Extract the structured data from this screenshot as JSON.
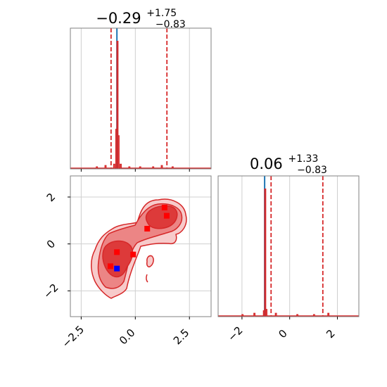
{
  "chart_data": [
    {
      "type": "histogram",
      "panel": "top-left",
      "title": {
        "main": "−0.29",
        "sup": "+1.75",
        "sub": "−0.83"
      },
      "xlim": [
        -3.0,
        3.5
      ],
      "quantile_lines": [
        -1.12,
        1.46
      ],
      "truth_line": -0.85,
      "x_ticks": [
        -2.5,
        0.0,
        2.5
      ],
      "histogram": {
        "x": [
          -1.8,
          -1.4,
          -1.0,
          -0.9,
          -0.85,
          -0.8,
          -0.7,
          -0.3,
          0.2,
          0.8,
          1.2,
          1.7
        ],
        "y": [
          0.01,
          0.02,
          0.03,
          0.3,
          0.98,
          0.25,
          0.03,
          0.01,
          0.01,
          0.01,
          0.02,
          0.01
        ]
      },
      "grid": true
    },
    {
      "type": "contour",
      "panel": "bottom-left",
      "xlim": [
        -3.0,
        3.5
      ],
      "ylim": [
        -3.1,
        2.9
      ],
      "x_ticks": [
        -2.5,
        0.0,
        2.5
      ],
      "x_tick_labels": [
        "−2.5",
        "0.0",
        "2.5"
      ],
      "y_ticks": [
        -2,
        0,
        2
      ],
      "y_tick_labels": [
        "−2",
        "0",
        "2"
      ],
      "samples": [
        [
          -1.15,
          -0.95
        ],
        [
          -0.85,
          -0.35
        ],
        [
          -0.1,
          -0.45
        ],
        [
          0.55,
          0.65
        ],
        [
          1.35,
          1.55
        ],
        [
          1.45,
          1.2
        ]
      ],
      "truth_point": [
        -0.85,
        -1.05
      ],
      "grid": true
    },
    {
      "type": "histogram",
      "panel": "bottom-right",
      "title": {
        "main": "0.06",
        "sup": "+1.33",
        "sub": "−0.83"
      },
      "xlim": [
        -3.0,
        2.9
      ],
      "quantile_lines": [
        -0.78,
        1.39
      ],
      "truth_line": -1.05,
      "x_ticks": [
        -2,
        0,
        2
      ],
      "x_tick_labels": [
        "−2",
        "0",
        "2"
      ],
      "histogram": {
        "x": [
          -2.0,
          -1.5,
          -1.1,
          -1.05,
          -1.0,
          -0.6,
          0.3,
          1.0,
          1.6
        ],
        "y": [
          0.01,
          0.02,
          0.04,
          0.98,
          0.05,
          0.02,
          0.01,
          0.01,
          0.02
        ]
      },
      "grid": true
    }
  ]
}
